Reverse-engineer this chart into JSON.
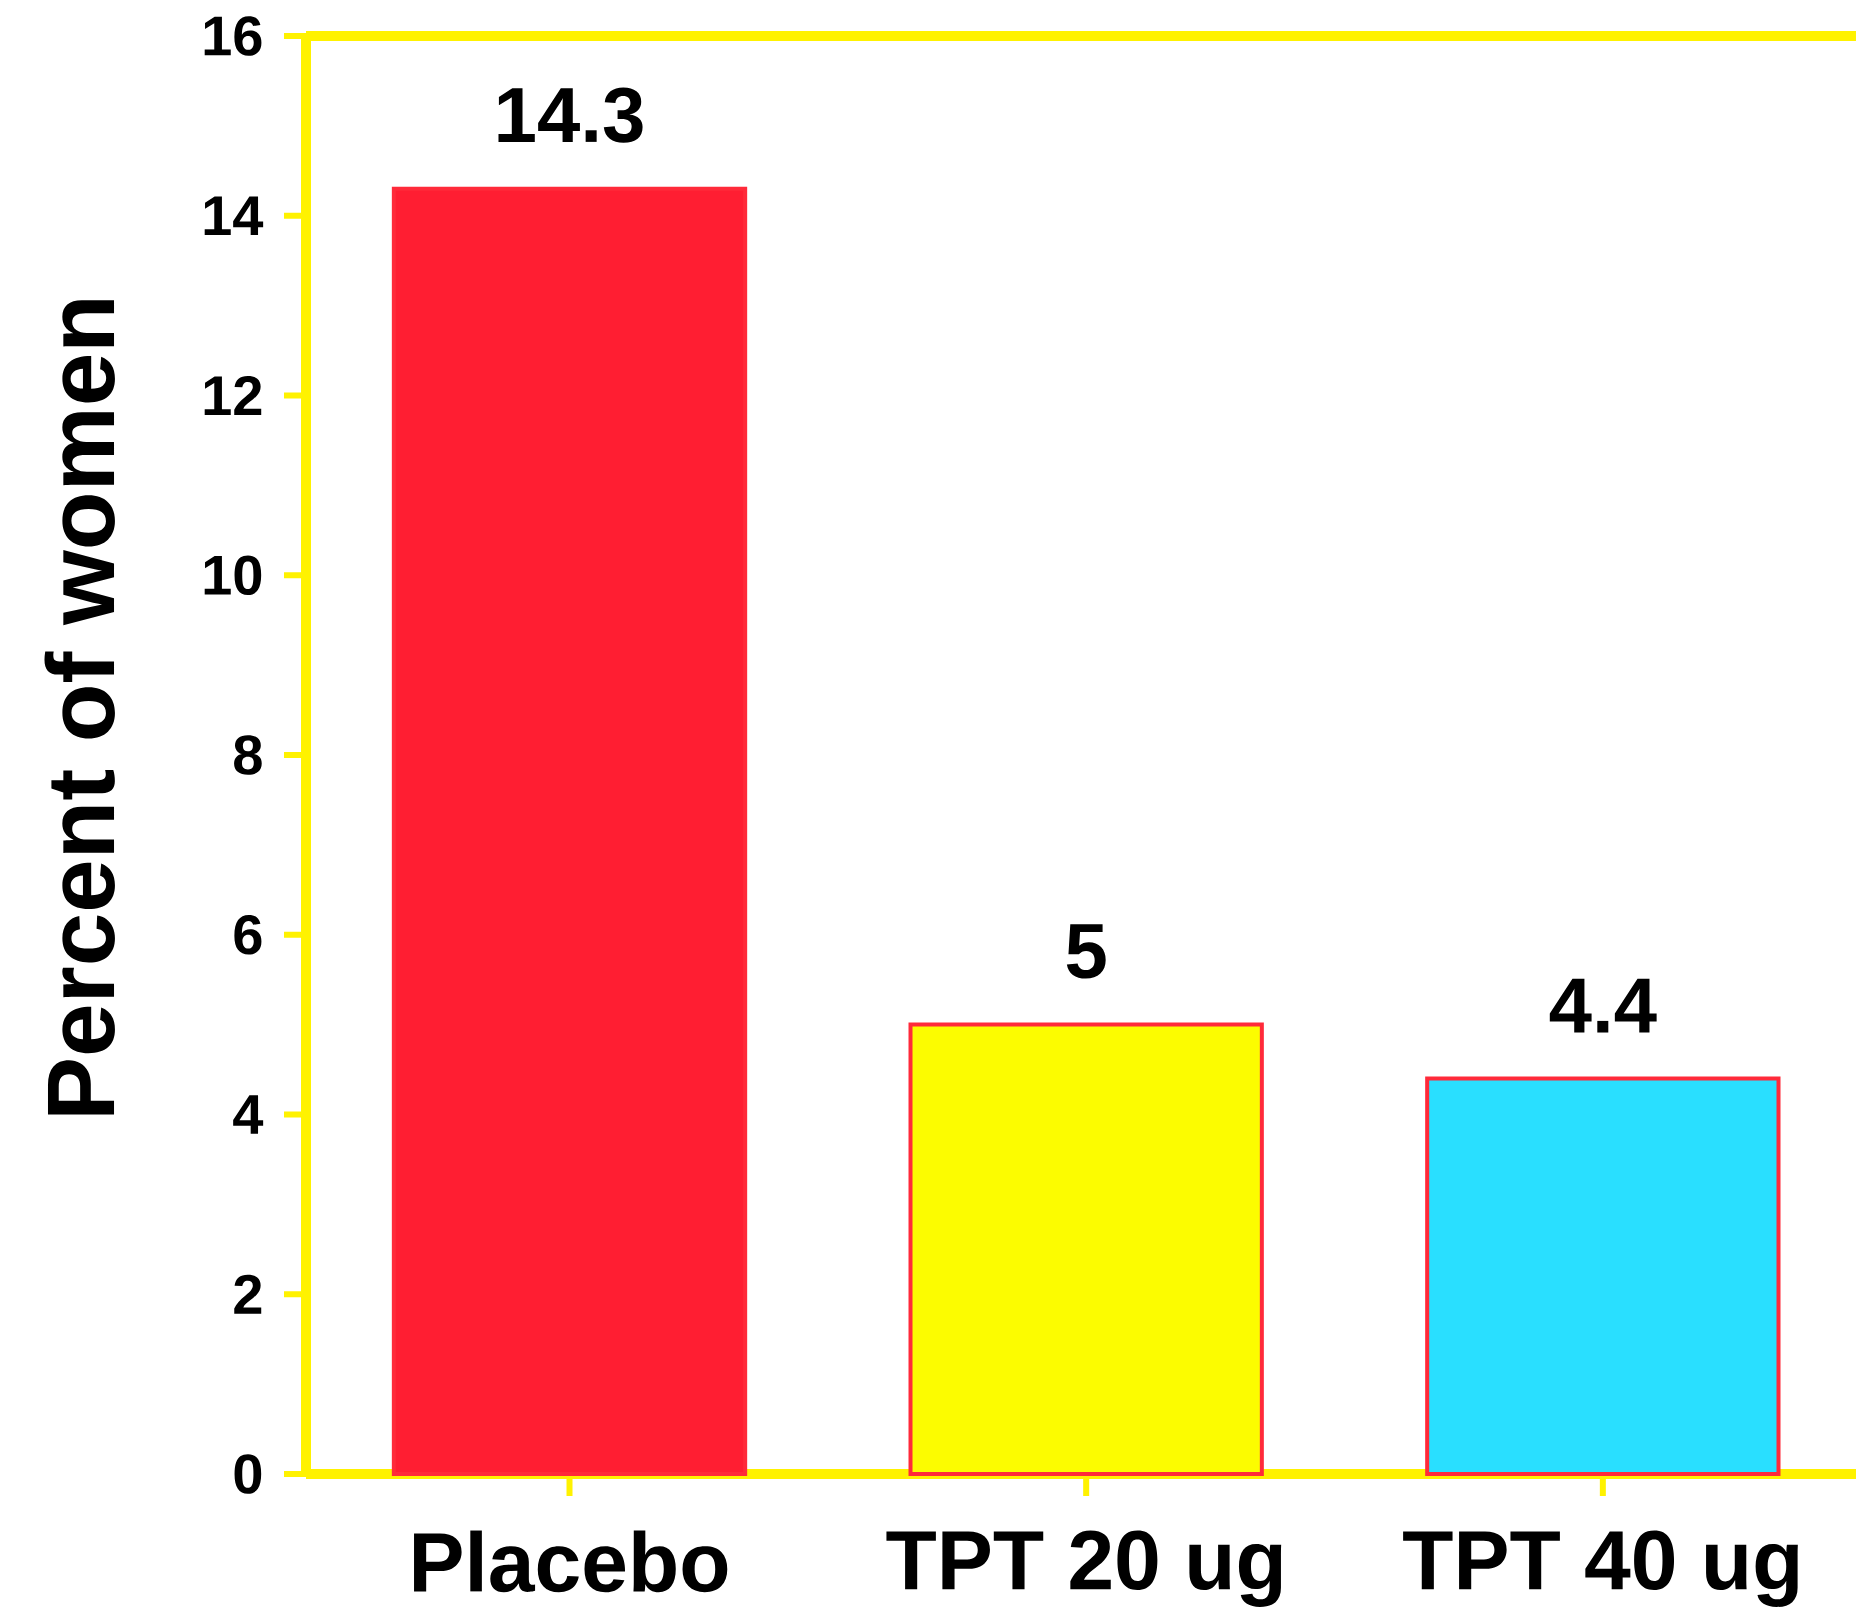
{
  "chart_data": {
    "type": "bar",
    "ylabel": "Percent of women",
    "categories": [
      "Placebo",
      "TPT 20 ug",
      "TPT 40 ug"
    ],
    "values": [
      14.3,
      5,
      4.4
    ],
    "colors": [
      "#ff1e32",
      "#fcfc00",
      "#29dfff"
    ],
    "ylim": [
      0,
      16
    ],
    "yticks": [
      0,
      2,
      4,
      6,
      8,
      10,
      12,
      14,
      16
    ],
    "data_labels": true
  }
}
